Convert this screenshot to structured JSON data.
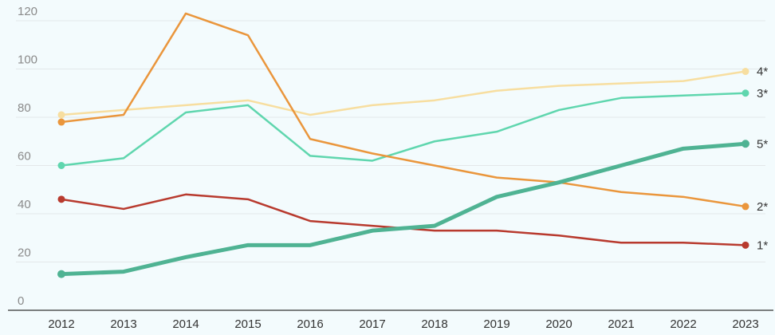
{
  "chart_data": {
    "type": "line",
    "title": "",
    "xlabel": "",
    "ylabel": "",
    "ylim": [
      0,
      125
    ],
    "yticks": [
      0,
      20,
      40,
      60,
      80,
      100,
      120
    ],
    "grid": true,
    "categories": [
      "2012",
      "2013",
      "2014",
      "2015",
      "2016",
      "2017",
      "2018",
      "2019",
      "2020",
      "2021",
      "2022",
      "2023"
    ],
    "series": [
      {
        "name": "4*",
        "color": "#f7dea0",
        "thick": false,
        "values": [
          81,
          83,
          85,
          87,
          81,
          85,
          87,
          91,
          93,
          94,
          95,
          99
        ]
      },
      {
        "name": "3*",
        "color": "#5fd6ae",
        "thick": false,
        "values": [
          60,
          63,
          82,
          85,
          64,
          62,
          70,
          74,
          83,
          88,
          89,
          90
        ]
      },
      {
        "name": "2*",
        "color": "#ea963c",
        "thick": false,
        "values": [
          78,
          81,
          123,
          114,
          71,
          65,
          60,
          55,
          53,
          49,
          47,
          43
        ]
      },
      {
        "name": "1*",
        "color": "#b83a2e",
        "thick": false,
        "values": [
          46,
          42,
          48,
          46,
          37,
          35,
          33,
          33,
          31,
          28,
          28,
          27
        ]
      },
      {
        "name": "5*",
        "color": "#4fb393",
        "thick": true,
        "values": [
          15,
          16,
          22,
          27,
          27,
          33,
          35,
          47,
          53,
          60,
          67,
          69
        ]
      }
    ]
  }
}
